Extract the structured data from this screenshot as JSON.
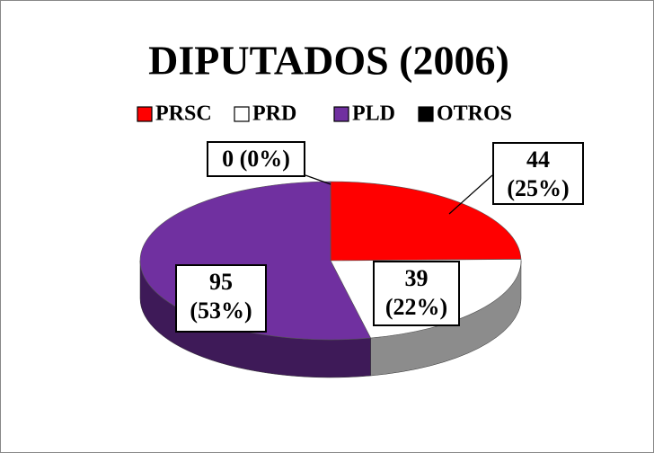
{
  "chart_data": {
    "type": "pie",
    "title": "DIPUTADOS (2006)",
    "categories": [
      "PRSC",
      "PRD",
      "PLD",
      "OTROS"
    ],
    "values": [
      44,
      39,
      95,
      0
    ],
    "value_labels": [
      "44 (25%)",
      "39 (22%)",
      "95 (53%)",
      "0 (0%)"
    ],
    "colors": [
      "#ff0000",
      "#ffffff",
      "#7030a0",
      "#000000"
    ],
    "legend": "top"
  }
}
